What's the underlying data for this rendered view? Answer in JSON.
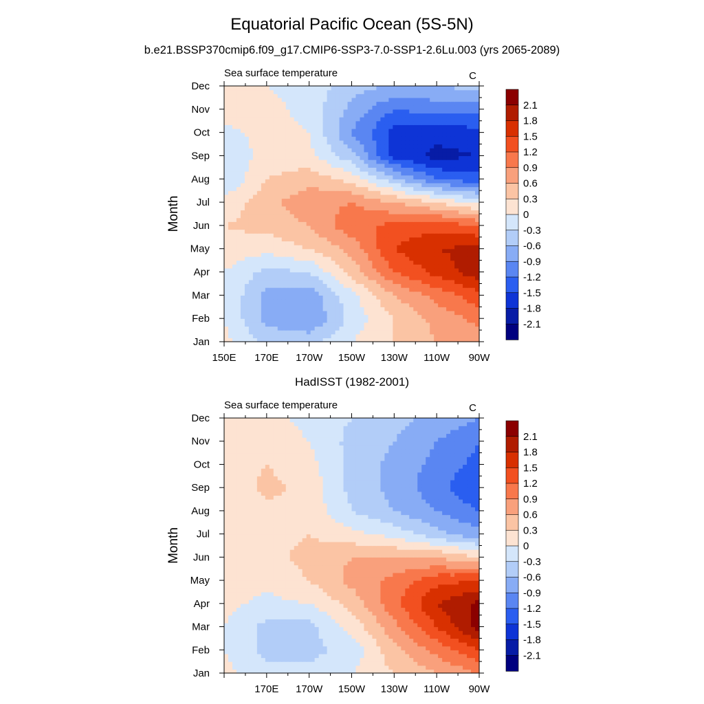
{
  "figure": {
    "title": "Equatorial Pacific Ocean (5S-5N)",
    "subtitle": "b.e21.BSSP370cmip6.f09_g17.CMIP6-SSP3-7.0-SSP1-2.6Lu.003 (yrs 2065-2089)",
    "panel2_title": "HadISST (1982-2001)"
  },
  "colorbar": {
    "levels": [
      "2.1",
      "1.8",
      "1.5",
      "1.2",
      "0.9",
      "0.6",
      "0.3",
      "0",
      "-0.3",
      "-0.6",
      "-0.9",
      "-1.2",
      "-1.5",
      "-1.8",
      "-2.1"
    ],
    "colors": [
      "#8b0000",
      "#b01c00",
      "#d83000",
      "#f25020",
      "#f8784c",
      "#f9a07c",
      "#fbc4a4",
      "#fde3d2",
      "#d4e6fb",
      "#b2cdf8",
      "#88acf5",
      "#5a86f2",
      "#2a5ef0",
      "#0e34d6",
      "#071ca6",
      "#00007f"
    ]
  },
  "chart_data": [
    {
      "type": "heatmap",
      "panel": "model",
      "left_label": "Sea surface temperature",
      "right_label": "C",
      "ylabel": "Month",
      "x": [
        "150E",
        "170E",
        "170W",
        "150W",
        "130W",
        "110W",
        "90W"
      ],
      "y": [
        "Jan",
        "Feb",
        "Mar",
        "Apr",
        "May",
        "Jun",
        "Jul",
        "Aug",
        "Sep",
        "Oct",
        "Nov",
        "Dec"
      ],
      "values": [
        [
          0.1,
          -0.4,
          -0.4,
          0.0,
          0.3,
          0.6,
          0.7
        ],
        [
          0.0,
          -0.7,
          -0.9,
          -0.2,
          0.3,
          0.7,
          1.0
        ],
        [
          0.0,
          -0.7,
          -0.8,
          -0.1,
          0.6,
          1.0,
          1.4
        ],
        [
          0.0,
          -0.4,
          -0.3,
          0.4,
          1.2,
          1.6,
          2.0
        ],
        [
          0.2,
          0.1,
          0.3,
          0.7,
          1.5,
          1.8,
          1.9
        ],
        [
          0.3,
          0.4,
          0.6,
          1.1,
          1.3,
          1.4,
          1.2
        ],
        [
          0.1,
          0.5,
          0.8,
          0.9,
          0.6,
          0.3,
          -0.1
        ],
        [
          -0.3,
          0.3,
          0.5,
          0.2,
          -0.5,
          -1.2,
          -1.4
        ],
        [
          -0.2,
          0.1,
          0.1,
          -0.5,
          -1.6,
          -1.9,
          -1.8
        ],
        [
          -0.1,
          0.1,
          0.0,
          -0.9,
          -1.6,
          -1.7,
          -1.6
        ],
        [
          0.2,
          0.1,
          -0.1,
          -0.7,
          -1.2,
          -1.1,
          -1.1
        ],
        [
          0.2,
          0.0,
          -0.1,
          -0.5,
          -0.6,
          -0.6,
          -0.5
        ]
      ],
      "levels": [
        -2.1,
        -1.8,
        -1.5,
        -1.2,
        -0.9,
        -0.6,
        -0.3,
        0,
        0.3,
        0.6,
        0.9,
        1.2,
        1.5,
        1.8,
        2.1
      ]
    },
    {
      "type": "heatmap",
      "panel": "observations",
      "left_label": "Sea surface temperature",
      "right_label": "C",
      "ylabel": "Month",
      "x": [
        "",
        "170E",
        "170W",
        "150W",
        "130W",
        "110W",
        "90W"
      ],
      "y": [
        "Jan",
        "Feb",
        "Mar",
        "Apr",
        "May",
        "Jun",
        "Jul",
        "Aug",
        "Sep",
        "Oct",
        "Nov",
        "Dec"
      ],
      "values": [
        [
          0.1,
          -0.2,
          -0.2,
          0.0,
          0.3,
          0.6,
          0.9
        ],
        [
          0.0,
          -0.4,
          -0.4,
          -0.2,
          0.5,
          1.0,
          1.5
        ],
        [
          0.0,
          -0.4,
          -0.4,
          0.1,
          0.8,
          1.5,
          2.2
        ],
        [
          0.1,
          -0.1,
          0.0,
          0.4,
          1.1,
          1.8,
          2.2
        ],
        [
          0.2,
          0.1,
          0.3,
          0.7,
          1.0,
          1.4,
          1.5
        ],
        [
          0.2,
          0.2,
          0.4,
          0.6,
          0.6,
          0.6,
          0.3
        ],
        [
          0.1,
          0.2,
          0.3,
          0.1,
          -0.1,
          -0.5,
          -0.8
        ],
        [
          0.0,
          0.2,
          0.2,
          -0.3,
          -0.6,
          -0.9,
          -1.2
        ],
        [
          0.0,
          0.4,
          0.2,
          -0.4,
          -0.7,
          -1.1,
          -1.5
        ],
        [
          0.1,
          0.3,
          0.1,
          -0.4,
          -0.7,
          -1.0,
          -1.3
        ],
        [
          0.2,
          0.2,
          0.0,
          -0.4,
          -0.6,
          -0.9,
          -1.2
        ],
        [
          0.2,
          0.1,
          -0.1,
          -0.3,
          -0.5,
          -0.7,
          -0.9
        ]
      ],
      "levels": [
        -2.1,
        -1.8,
        -1.5,
        -1.2,
        -0.9,
        -0.6,
        -0.3,
        0,
        0.3,
        0.6,
        0.9,
        1.2,
        1.5,
        1.8,
        2.1
      ]
    }
  ]
}
